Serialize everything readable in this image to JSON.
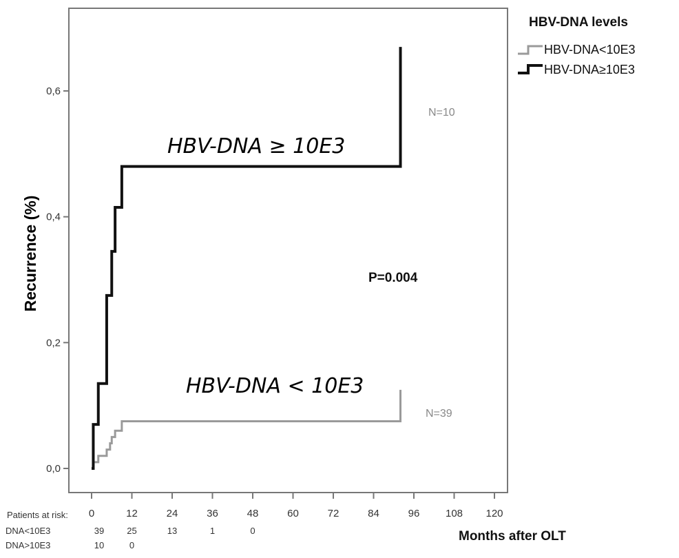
{
  "chart_data": {
    "type": "line",
    "step": true,
    "ylabel": "Recurrence (%)",
    "xlabel": "Months after OLT",
    "xlim": [
      0,
      120
    ],
    "ylim": [
      0,
      0.7
    ],
    "x_ticks": [
      "0",
      "12",
      "24",
      "36",
      "48",
      "60",
      "72",
      "84",
      "96",
      "108",
      "120"
    ],
    "x_tick_values": [
      0,
      12,
      24,
      36,
      48,
      60,
      72,
      84,
      96,
      108,
      120
    ],
    "y_ticks": [
      "0,0",
      "0,2",
      "0,4",
      "0,6"
    ],
    "y_tick_values": [
      0,
      0.2,
      0.4,
      0.6
    ],
    "grid": false,
    "legend": {
      "title": "HBV-DNA levels",
      "placement": "top-right outside",
      "items": [
        "HBV-DNA<10E3",
        "HBV-DNA≥10E3"
      ]
    },
    "series": [
      {
        "name": "HBV-DNA<10E3",
        "color": "#9a9a9a",
        "points": [
          [
            0,
            0
          ],
          [
            0.5,
            0.01
          ],
          [
            2,
            0.02
          ],
          [
            4.5,
            0.03
          ],
          [
            5.5,
            0.04
          ],
          [
            6,
            0.05
          ],
          [
            7,
            0.06
          ],
          [
            9,
            0.075
          ],
          [
            92,
            0.075
          ],
          [
            92,
            0.125
          ]
        ]
      },
      {
        "name": "HBV-DNA≥10E3",
        "color": "#111111",
        "points": [
          [
            0,
            0
          ],
          [
            0.5,
            0.07
          ],
          [
            2,
            0.135
          ],
          [
            4.5,
            0.275
          ],
          [
            6,
            0.345
          ],
          [
            7,
            0.415
          ],
          [
            9,
            0.48
          ],
          [
            92,
            0.48
          ],
          [
            92,
            0.67
          ]
        ]
      }
    ],
    "annotations": {
      "high_label": "HBV-DNA ≥ 10E3",
      "low_label": "HBV-DNA < 10E3",
      "n_high": "N=10",
      "n_low": "N=39",
      "p_value": "P=0.004"
    },
    "at_risk": {
      "header": "Patients at risk:",
      "rows": [
        {
          "label": "DNA<10E3",
          "values": [
            "39",
            "25",
            "13",
            "1",
            "0"
          ]
        },
        {
          "label": "DNA>10E3",
          "values": [
            "10",
            "0"
          ]
        }
      ]
    }
  }
}
